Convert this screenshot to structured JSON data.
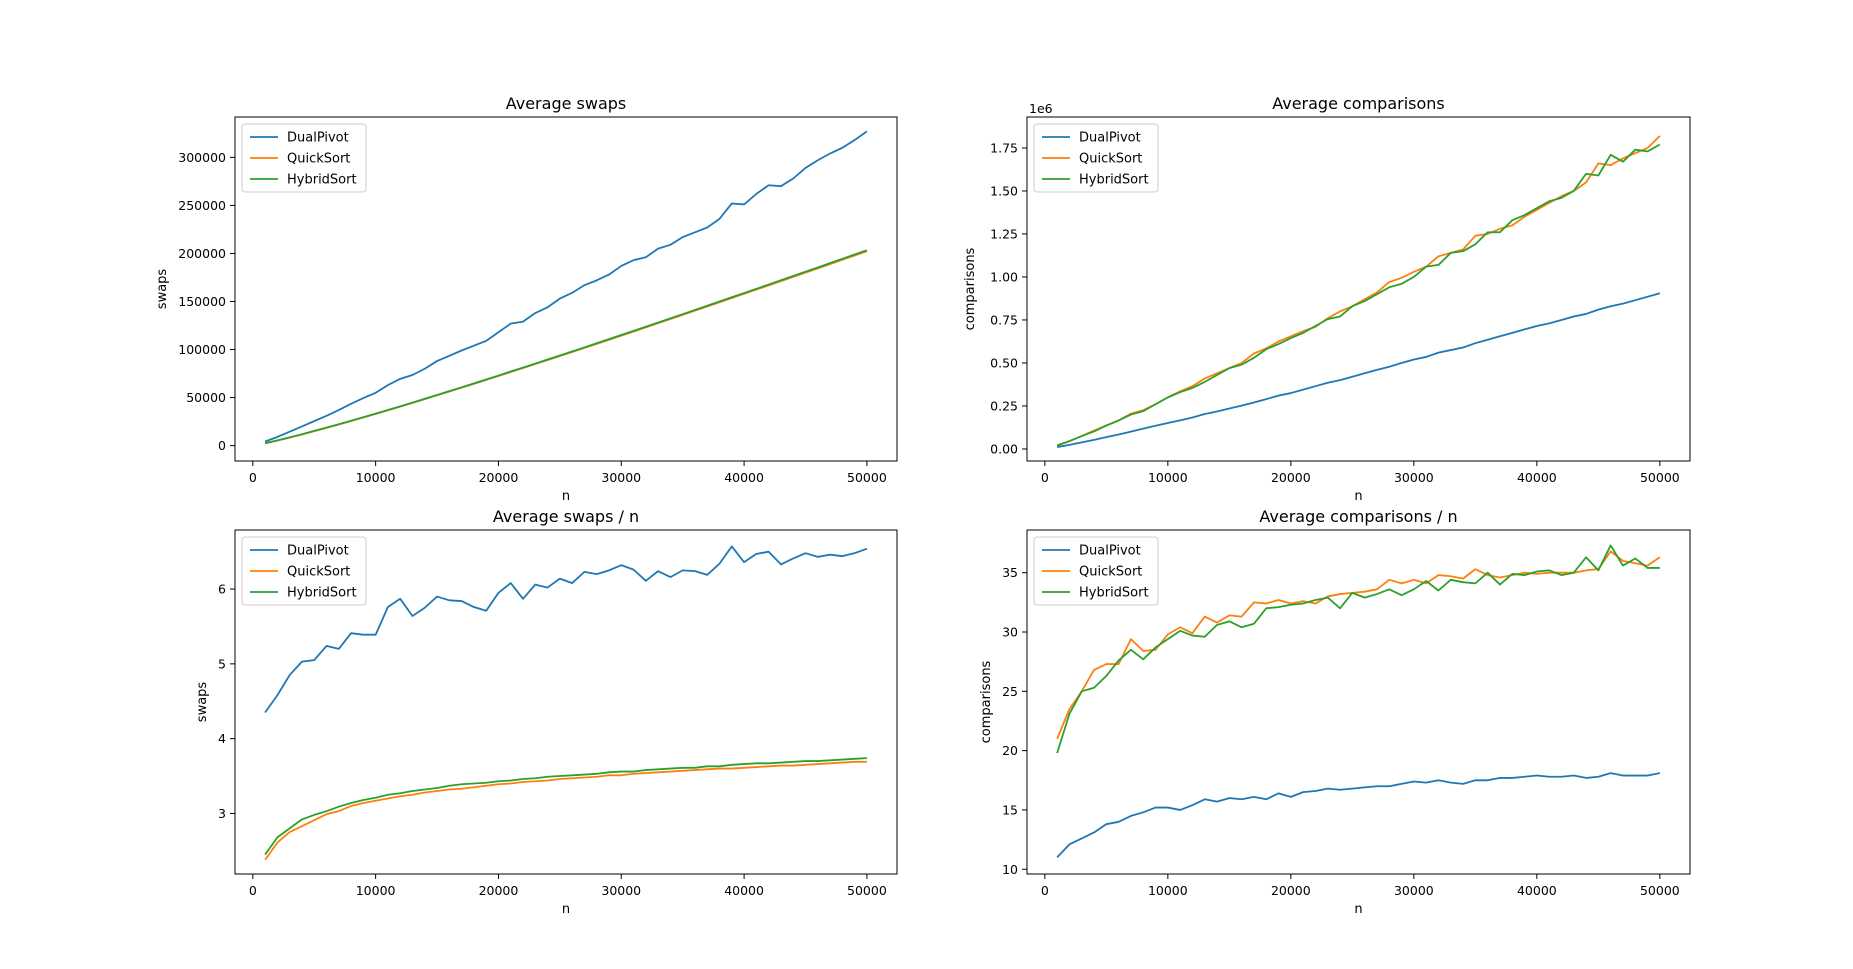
{
  "figure": {
    "colors": {
      "DualPivot": "#1f77b4",
      "QuickSort": "#ff7f0e",
      "HybridSort": "#2ca02c"
    }
  },
  "chart_data": [
    {
      "type": "line",
      "title": "Average swaps",
      "xlabel": "n",
      "ylabel": "swaps",
      "offset_text": "",
      "xlim": [
        -1450,
        52450
      ],
      "ylim": [
        -16000,
        342000
      ],
      "xticks": [
        0,
        10000,
        20000,
        30000,
        40000,
        50000
      ],
      "xtick_labels": [
        "0",
        "10000",
        "20000",
        "30000",
        "40000",
        "50000"
      ],
      "yticks": [
        0,
        50000,
        100000,
        150000,
        200000,
        250000,
        300000
      ],
      "ytick_labels": [
        "0",
        "50000",
        "100000",
        "150000",
        "200000",
        "250000",
        "300000"
      ],
      "legend": {
        "position": "upper-left",
        "entries": [
          "DualPivot",
          "QuickSort",
          "HybridSort"
        ]
      },
      "grid": false,
      "x": [
        1000,
        2000,
        3000,
        4000,
        5000,
        6000,
        7000,
        8000,
        9000,
        10000,
        11000,
        12000,
        13000,
        14000,
        15000,
        16000,
        17000,
        18000,
        19000,
        20000,
        21000,
        22000,
        23000,
        24000,
        25000,
        26000,
        27000,
        28000,
        29000,
        30000,
        31000,
        32000,
        33000,
        34000,
        35000,
        36000,
        37000,
        38000,
        39000,
        40000,
        41000,
        42000,
        43000,
        44000,
        45000,
        46000,
        47000,
        48000,
        49000,
        50000
      ],
      "series": [
        {
          "name": "DualPivot",
          "values": [
            4300,
            9000,
            14500,
            20000,
            25500,
            31000,
            37000,
            43500,
            49500,
            55000,
            63000,
            69500,
            73500,
            80000,
            88000,
            93500,
            99000,
            104000,
            109000,
            118000,
            127000,
            129000,
            138000,
            144000,
            153000,
            159000,
            167000,
            172000,
            178000,
            187000,
            193000,
            196000,
            205000,
            209000,
            217000,
            222000,
            227000,
            236000,
            252000,
            251000,
            262000,
            271000,
            270000,
            278000,
            289000,
            297000,
            304000,
            310000,
            318000,
            327000
          ]
        },
        {
          "name": "QuickSort",
          "values": [
            2300,
            5200,
            8300,
            11600,
            15000,
            18500,
            22000,
            25600,
            29300,
            33000,
            36800,
            40600,
            44500,
            48400,
            52400,
            56300,
            60300,
            64300,
            68400,
            72400,
            76600,
            80700,
            84900,
            89000,
            93200,
            97400,
            101700,
            105900,
            110200,
            114500,
            118700,
            123000,
            127400,
            131700,
            136100,
            140500,
            144800,
            149200,
            153600,
            158000,
            162400,
            166800,
            171200,
            175600,
            180000,
            184500,
            188900,
            193400,
            197800,
            202300
          ]
        },
        {
          "name": "HybridSort",
          "values": [
            2500,
            5500,
            8600,
            11900,
            15300,
            18800,
            22300,
            25900,
            29600,
            33300,
            37100,
            40900,
            44800,
            48800,
            52700,
            56700,
            60700,
            64800,
            68800,
            72900,
            77100,
            81200,
            85400,
            89600,
            93800,
            98000,
            102200,
            106500,
            110800,
            115100,
            119400,
            123700,
            128100,
            132400,
            136800,
            141200,
            145600,
            150000,
            154400,
            158800,
            163200,
            167600,
            172100,
            176500,
            181000,
            185400,
            189900,
            194400,
            198900,
            203400
          ]
        }
      ]
    },
    {
      "type": "line",
      "title": "Average comparisons",
      "xlabel": "n",
      "ylabel": "comparisons",
      "offset_text": "1e6",
      "xlim": [
        -1450,
        52450
      ],
      "ylim": [
        -0.07,
        1.93
      ],
      "xticks": [
        0,
        10000,
        20000,
        30000,
        40000,
        50000
      ],
      "xtick_labels": [
        "0",
        "10000",
        "20000",
        "30000",
        "40000",
        "50000"
      ],
      "yticks": [
        0,
        0.25,
        0.5,
        0.75,
        1.0,
        1.25,
        1.5,
        1.75
      ],
      "ytick_labels": [
        "0.00",
        "0.25",
        "0.50",
        "0.75",
        "1.00",
        "1.25",
        "1.50",
        "1.75"
      ],
      "legend": {
        "position": "upper-left",
        "entries": [
          "DualPivot",
          "QuickSort",
          "HybridSort"
        ]
      },
      "grid": false,
      "x": [
        1000,
        2000,
        3000,
        4000,
        5000,
        6000,
        7000,
        8000,
        9000,
        10000,
        11000,
        12000,
        13000,
        14000,
        15000,
        16000,
        17000,
        18000,
        19000,
        20000,
        21000,
        22000,
        23000,
        24000,
        25000,
        26000,
        27000,
        28000,
        29000,
        30000,
        31000,
        32000,
        33000,
        34000,
        35000,
        36000,
        37000,
        38000,
        39000,
        40000,
        41000,
        42000,
        43000,
        44000,
        45000,
        46000,
        47000,
        48000,
        49000,
        50000
      ],
      "series": [
        {
          "name": "DualPivot",
          "values": [
            0.011,
            0.024,
            0.038,
            0.053,
            0.069,
            0.084,
            0.101,
            0.118,
            0.135,
            0.151,
            0.166,
            0.183,
            0.203,
            0.218,
            0.235,
            0.252,
            0.27,
            0.29,
            0.31,
            0.325,
            0.345,
            0.365,
            0.385,
            0.4,
            0.42,
            0.44,
            0.46,
            0.478,
            0.5,
            0.52,
            0.535,
            0.56,
            0.575,
            0.59,
            0.615,
            0.635,
            0.655,
            0.675,
            0.695,
            0.715,
            0.73,
            0.75,
            0.77,
            0.785,
            0.81,
            0.83,
            0.845,
            0.865,
            0.885,
            0.905
          ]
        },
        {
          "name": "QuickSort",
          "values": [
            0.021,
            0.045,
            0.075,
            0.107,
            0.137,
            0.165,
            0.205,
            0.225,
            0.26,
            0.3,
            0.335,
            0.365,
            0.41,
            0.44,
            0.47,
            0.5,
            0.555,
            0.585,
            0.625,
            0.655,
            0.685,
            0.71,
            0.76,
            0.8,
            0.83,
            0.87,
            0.91,
            0.97,
            0.995,
            1.03,
            1.06,
            1.12,
            1.14,
            1.16,
            1.24,
            1.25,
            1.28,
            1.3,
            1.35,
            1.39,
            1.43,
            1.47,
            1.5,
            1.55,
            1.66,
            1.65,
            1.69,
            1.72,
            1.75,
            1.82
          ]
        },
        {
          "name": "HybridSort",
          "values": [
            0.02,
            0.046,
            0.075,
            0.102,
            0.136,
            0.166,
            0.2,
            0.22,
            0.26,
            0.3,
            0.33,
            0.355,
            0.39,
            0.43,
            0.47,
            0.49,
            0.53,
            0.58,
            0.61,
            0.645,
            0.675,
            0.715,
            0.755,
            0.77,
            0.83,
            0.86,
            0.9,
            0.94,
            0.96,
            1.0,
            1.06,
            1.07,
            1.14,
            1.15,
            1.19,
            1.26,
            1.26,
            1.33,
            1.36,
            1.4,
            1.44,
            1.46,
            1.5,
            1.6,
            1.59,
            1.71,
            1.67,
            1.74,
            1.73,
            1.77
          ]
        }
      ]
    },
    {
      "type": "line",
      "title": "Average swaps / n",
      "xlabel": "n",
      "ylabel": "swaps",
      "offset_text": "",
      "xlim": [
        -1450,
        52450
      ],
      "ylim": [
        2.19,
        6.79
      ],
      "xticks": [
        0,
        10000,
        20000,
        30000,
        40000,
        50000
      ],
      "xtick_labels": [
        "0",
        "10000",
        "20000",
        "30000",
        "40000",
        "50000"
      ],
      "yticks": [
        3,
        4,
        5,
        6
      ],
      "ytick_labels": [
        "3",
        "4",
        "5",
        "6"
      ],
      "legend": {
        "position": "upper-left",
        "entries": [
          "DualPivot",
          "QuickSort",
          "HybridSort"
        ]
      },
      "grid": false,
      "x": [
        1000,
        2000,
        3000,
        4000,
        5000,
        6000,
        7000,
        8000,
        9000,
        10000,
        11000,
        12000,
        13000,
        14000,
        15000,
        16000,
        17000,
        18000,
        19000,
        20000,
        21000,
        22000,
        23000,
        24000,
        25000,
        26000,
        27000,
        28000,
        29000,
        30000,
        31000,
        32000,
        33000,
        34000,
        35000,
        36000,
        37000,
        38000,
        39000,
        40000,
        41000,
        42000,
        43000,
        44000,
        45000,
        46000,
        47000,
        48000,
        49000,
        50000
      ],
      "series": [
        {
          "name": "DualPivot",
          "values": [
            4.35,
            4.58,
            4.85,
            5.03,
            5.05,
            5.24,
            5.2,
            5.41,
            5.39,
            5.39,
            5.76,
            5.87,
            5.64,
            5.75,
            5.9,
            5.85,
            5.84,
            5.76,
            5.71,
            5.95,
            6.08,
            5.87,
            6.06,
            6.02,
            6.14,
            6.08,
            6.23,
            6.2,
            6.25,
            6.32,
            6.26,
            6.11,
            6.24,
            6.16,
            6.25,
            6.24,
            6.19,
            6.34,
            6.57,
            6.36,
            6.47,
            6.5,
            6.33,
            6.41,
            6.48,
            6.43,
            6.46,
            6.44,
            6.48,
            6.54
          ]
        },
        {
          "name": "QuickSort",
          "values": [
            2.38,
            2.61,
            2.75,
            2.83,
            2.91,
            2.99,
            3.03,
            3.1,
            3.14,
            3.17,
            3.2,
            3.23,
            3.25,
            3.28,
            3.3,
            3.32,
            3.33,
            3.35,
            3.37,
            3.39,
            3.4,
            3.42,
            3.43,
            3.44,
            3.46,
            3.47,
            3.48,
            3.49,
            3.51,
            3.51,
            3.53,
            3.54,
            3.55,
            3.56,
            3.57,
            3.58,
            3.59,
            3.6,
            3.6,
            3.61,
            3.62,
            3.63,
            3.64,
            3.64,
            3.65,
            3.66,
            3.67,
            3.68,
            3.69,
            3.69
          ]
        },
        {
          "name": "HybridSort",
          "values": [
            2.45,
            2.68,
            2.8,
            2.92,
            2.98,
            3.03,
            3.09,
            3.14,
            3.18,
            3.21,
            3.25,
            3.27,
            3.3,
            3.32,
            3.34,
            3.37,
            3.39,
            3.4,
            3.41,
            3.43,
            3.44,
            3.46,
            3.47,
            3.49,
            3.5,
            3.51,
            3.52,
            3.53,
            3.55,
            3.56,
            3.56,
            3.58,
            3.59,
            3.6,
            3.61,
            3.61,
            3.63,
            3.63,
            3.65,
            3.66,
            3.67,
            3.67,
            3.68,
            3.69,
            3.7,
            3.7,
            3.71,
            3.72,
            3.73,
            3.74
          ]
        }
      ]
    },
    {
      "type": "line",
      "title": "Average comparisons / n",
      "xlabel": "n",
      "ylabel": "comparisons",
      "offset_text": "",
      "xlim": [
        -1450,
        52450
      ],
      "ylim": [
        9.6,
        38.6
      ],
      "xticks": [
        0,
        10000,
        20000,
        30000,
        40000,
        50000
      ],
      "xtick_labels": [
        "0",
        "10000",
        "20000",
        "30000",
        "40000",
        "50000"
      ],
      "yticks": [
        10,
        15,
        20,
        25,
        30,
        35
      ],
      "ytick_labels": [
        "10",
        "15",
        "20",
        "25",
        "30",
        "35"
      ],
      "legend": {
        "position": "upper-left",
        "entries": [
          "DualPivot",
          "QuickSort",
          "HybridSort"
        ]
      },
      "grid": false,
      "x": [
        1000,
        2000,
        3000,
        4000,
        5000,
        6000,
        7000,
        8000,
        9000,
        10000,
        11000,
        12000,
        13000,
        14000,
        15000,
        16000,
        17000,
        18000,
        19000,
        20000,
        21000,
        22000,
        23000,
        24000,
        25000,
        26000,
        27000,
        28000,
        29000,
        30000,
        31000,
        32000,
        33000,
        34000,
        35000,
        36000,
        37000,
        38000,
        39000,
        40000,
        41000,
        42000,
        43000,
        44000,
        45000,
        46000,
        47000,
        48000,
        49000,
        50000
      ],
      "series": [
        {
          "name": "DualPivot",
          "values": [
            11.0,
            12.1,
            12.6,
            13.1,
            13.8,
            14.0,
            14.5,
            14.8,
            15.2,
            15.2,
            15.0,
            15.4,
            15.9,
            15.7,
            16.0,
            15.9,
            16.1,
            15.9,
            16.4,
            16.1,
            16.5,
            16.6,
            16.8,
            16.7,
            16.8,
            16.9,
            17.0,
            17.0,
            17.2,
            17.4,
            17.3,
            17.5,
            17.3,
            17.2,
            17.5,
            17.5,
            17.7,
            17.7,
            17.8,
            17.9,
            17.8,
            17.8,
            17.9,
            17.7,
            17.8,
            18.1,
            17.9,
            17.9,
            17.9,
            18.1
          ]
        },
        {
          "name": "QuickSort",
          "values": [
            21.0,
            23.5,
            25.0,
            26.8,
            27.3,
            27.3,
            29.4,
            28.4,
            28.5,
            29.8,
            30.4,
            29.9,
            31.3,
            30.8,
            31.4,
            31.3,
            32.5,
            32.4,
            32.7,
            32.4,
            32.6,
            32.4,
            33.0,
            33.2,
            33.3,
            33.4,
            33.6,
            34.4,
            34.1,
            34.4,
            34.1,
            34.8,
            34.7,
            34.5,
            35.3,
            34.8,
            34.6,
            34.8,
            35.0,
            34.9,
            35.0,
            35.0,
            35.0,
            35.2,
            35.3,
            36.8,
            36.0,
            35.8,
            35.6,
            36.3
          ]
        },
        {
          "name": "HybridSort",
          "values": [
            19.8,
            23.1,
            25.0,
            25.3,
            26.3,
            27.6,
            28.5,
            27.7,
            28.7,
            29.4,
            30.1,
            29.7,
            29.6,
            30.6,
            30.9,
            30.4,
            30.7,
            32.0,
            32.1,
            32.3,
            32.4,
            32.7,
            32.9,
            32.0,
            33.3,
            32.9,
            33.2,
            33.6,
            33.1,
            33.6,
            34.3,
            33.5,
            34.4,
            34.2,
            34.1,
            35.0,
            34.0,
            34.9,
            34.8,
            35.1,
            35.2,
            34.8,
            35.0,
            36.3,
            35.2,
            37.3,
            35.6,
            36.2,
            35.4,
            35.4
          ]
        }
      ]
    }
  ]
}
